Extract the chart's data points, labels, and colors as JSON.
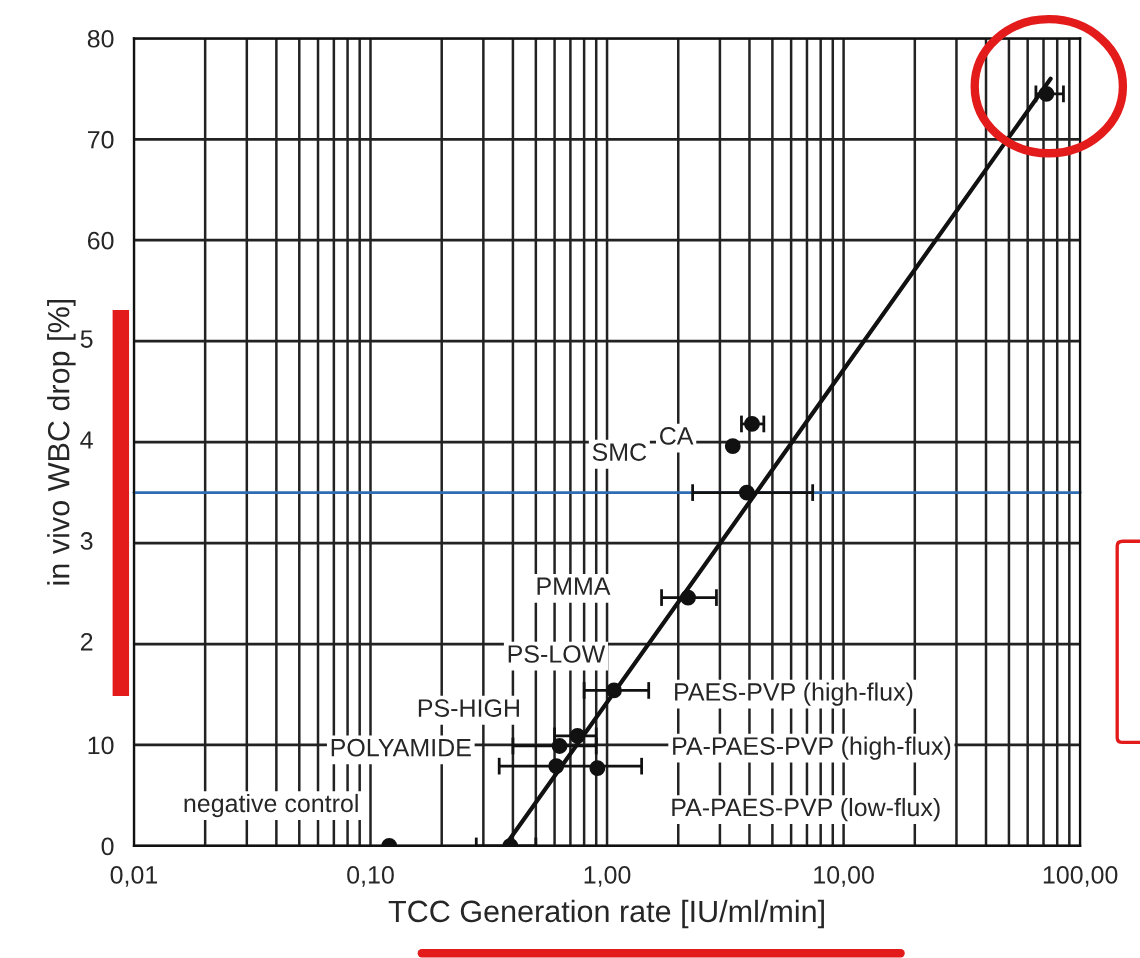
{
  "chart_data": {
    "type": "scatter",
    "xlabel": "TCC Generation rate [IU/ml/min]",
    "ylabel": "in vivo WBC drop [%]",
    "log": "x",
    "xlim": [
      0.01,
      100
    ],
    "xticks": [
      {
        "value": 0.01,
        "label": "0,01"
      },
      {
        "value": 0.1,
        "label": "0,10"
      },
      {
        "value": 1,
        "label": "1,00"
      },
      {
        "value": 10,
        "label": "10,00"
      },
      {
        "value": 100,
        "label": "100,00"
      }
    ],
    "ylim": [
      0,
      80
    ],
    "yticks": [
      0,
      10,
      {
        "value": 20,
        "label": null
      },
      {
        "value": 30,
        "label": null
      },
      {
        "value": 40,
        "label": null
      },
      {
        "value": 50,
        "label": null
      },
      60,
      70,
      80
    ],
    "grid": true,
    "series": [
      {
        "marker": "circle",
        "color": "#111111",
        "x": [
          0.12,
          0.39,
          0.61,
          0.63,
          0.75,
          0.91,
          1.07,
          2.2,
          3.9,
          3.4,
          4.1,
          72
        ],
        "values": [
          0,
          0,
          7.9,
          9.9,
          10.9,
          7.7,
          15.4,
          24.6,
          35,
          39.6,
          41.8,
          74.5
        ],
        "xerrors": [
          null,
          [
            0.28,
            0.5
          ],
          [
            0.35,
            1.4
          ],
          [
            0.4,
            0.9
          ],
          [
            0.6,
            0.9
          ],
          null,
          [
            0.8,
            1.5
          ],
          [
            1.7,
            2.9
          ],
          [
            2.3,
            7.4
          ],
          null,
          [
            3.7,
            4.6
          ],
          [
            65,
            85
          ]
        ]
      },
      {
        "type": "line",
        "marker": "none",
        "color": "#111111",
        "x": [
          0.37,
          75
        ],
        "values": [
          0,
          76
        ]
      }
    ],
    "ref_lines": [
      {
        "axis": "y",
        "value": 35,
        "color": "#2e6db4"
      }
    ],
    "annotations": [
      "SMC",
      "CA",
      "PMMA",
      "PS-LOW",
      "PS-HIGH",
      "POLYAMIDE",
      "negative control",
      "PAES-PVP (high-flux)",
      "PA-PAES-PVP (high-flux)",
      "PA-PAES-PVP (low-flux)",
      "2",
      "3",
      "4",
      "5"
    ]
  }
}
